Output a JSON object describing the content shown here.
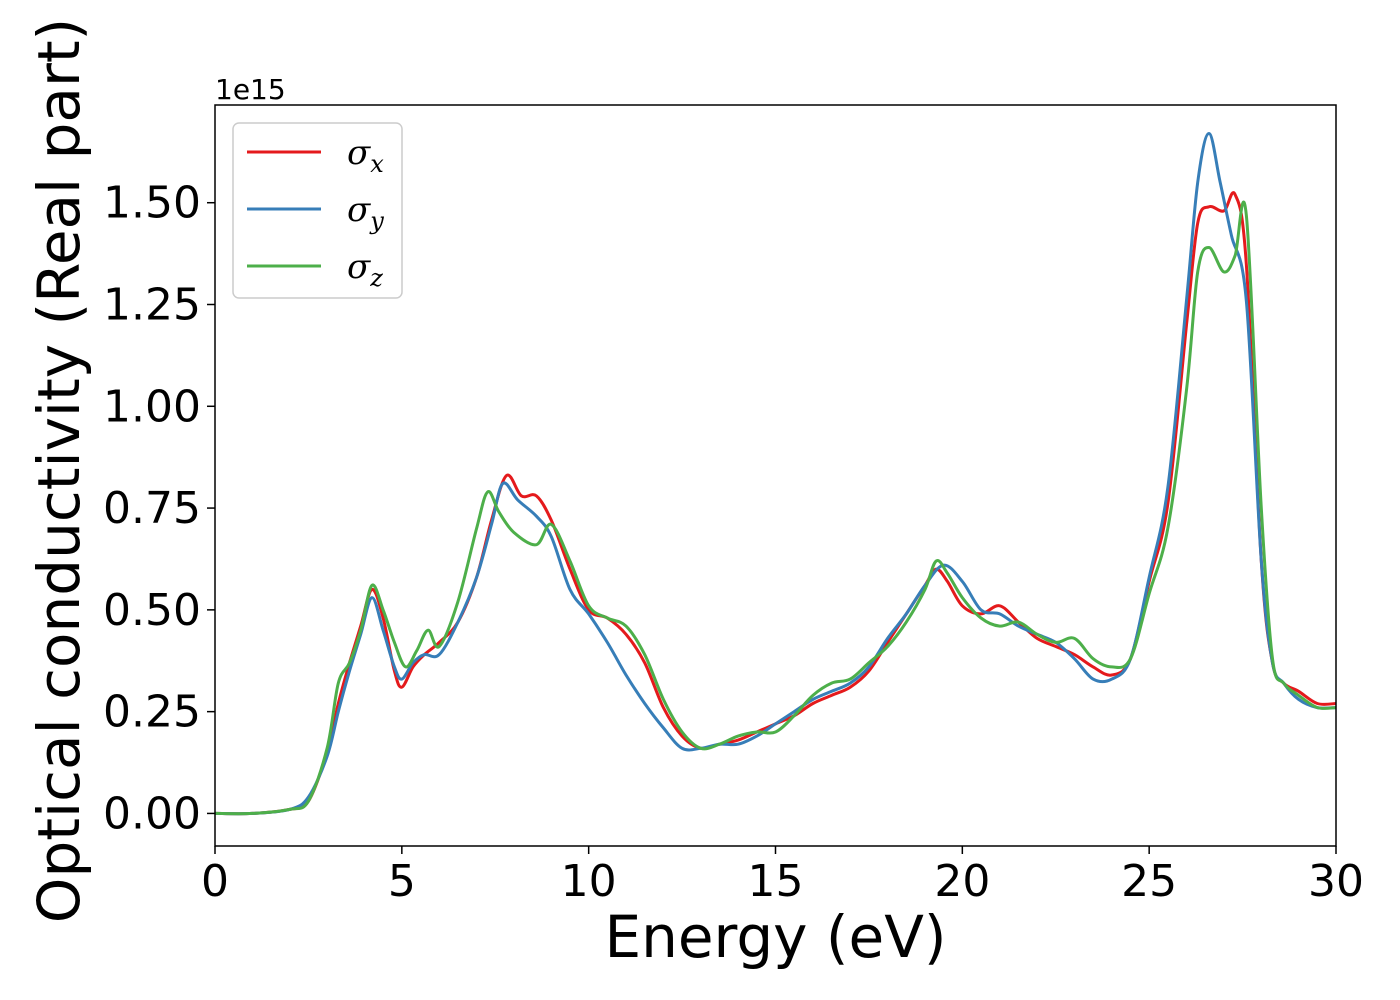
{
  "chart_data": {
    "type": "line",
    "title": "",
    "xlabel": "Energy (eV)",
    "ylabel": "Optical conductivity (Real part)",
    "y_offset_text": "1e15",
    "xlim": [
      0,
      30
    ],
    "ylim": [
      -0.08,
      1.74
    ],
    "xticks": [
      0,
      5,
      10,
      15,
      20,
      25,
      30
    ],
    "xtick_labels": [
      "0",
      "5",
      "10",
      "15",
      "20",
      "25",
      "30"
    ],
    "yticks": [
      0.0,
      0.25,
      0.5,
      0.75,
      1.0,
      1.25,
      1.5
    ],
    "ytick_labels": [
      "0.00",
      "0.25",
      "0.50",
      "0.75",
      "1.00",
      "1.25",
      "1.50"
    ],
    "grid": false,
    "legend_position": "top-left",
    "series": [
      {
        "name": "σ",
        "subscript": "x",
        "color": "#e41a1c",
        "x": [
          0,
          1,
          2,
          2.5,
          3,
          3.3,
          3.6,
          3.9,
          4.2,
          4.5,
          4.8,
          5.0,
          5.3,
          5.6,
          6.0,
          6.5,
          7.0,
          7.4,
          7.8,
          8.2,
          8.6,
          9.0,
          9.5,
          10.0,
          10.5,
          11.0,
          11.5,
          12.0,
          12.5,
          13.0,
          13.5,
          14.0,
          14.5,
          15.0,
          15.5,
          16.0,
          16.5,
          17.0,
          17.5,
          18.0,
          18.5,
          19.0,
          19.3,
          19.6,
          20.0,
          20.5,
          21.0,
          21.5,
          22.0,
          22.5,
          23.0,
          23.5,
          24.0,
          24.5,
          25.0,
          25.5,
          26.0,
          26.3,
          26.6,
          27.0,
          27.3,
          27.6,
          28.0,
          28.3,
          28.6,
          29.0,
          29.5,
          30.0
        ],
        "y": [
          0.0,
          0.0,
          0.01,
          0.03,
          0.15,
          0.27,
          0.37,
          0.46,
          0.55,
          0.48,
          0.35,
          0.31,
          0.36,
          0.39,
          0.42,
          0.47,
          0.58,
          0.72,
          0.83,
          0.78,
          0.78,
          0.72,
          0.6,
          0.5,
          0.48,
          0.44,
          0.37,
          0.26,
          0.19,
          0.16,
          0.17,
          0.18,
          0.2,
          0.22,
          0.24,
          0.27,
          0.29,
          0.31,
          0.35,
          0.42,
          0.49,
          0.56,
          0.6,
          0.57,
          0.51,
          0.49,
          0.51,
          0.47,
          0.43,
          0.41,
          0.39,
          0.36,
          0.34,
          0.38,
          0.57,
          0.76,
          1.2,
          1.45,
          1.49,
          1.48,
          1.52,
          1.35,
          0.62,
          0.37,
          0.32,
          0.3,
          0.27,
          0.27
        ]
      },
      {
        "name": "σ",
        "subscript": "y",
        "color": "#377eb8",
        "x": [
          0,
          1,
          2,
          2.5,
          3,
          3.3,
          3.6,
          3.9,
          4.2,
          4.5,
          4.8,
          5.0,
          5.3,
          5.6,
          6.0,
          6.5,
          7.0,
          7.4,
          7.7,
          8.1,
          8.6,
          9.0,
          9.5,
          10.0,
          10.5,
          11.0,
          11.5,
          12.0,
          12.5,
          13.0,
          13.5,
          14.0,
          14.5,
          15.0,
          15.5,
          16.0,
          16.5,
          17.0,
          17.5,
          18.0,
          18.5,
          19.0,
          19.5,
          20.0,
          20.5,
          21.0,
          21.5,
          22.0,
          22.5,
          23.0,
          23.5,
          24.0,
          24.5,
          25.0,
          25.5,
          26.0,
          26.3,
          26.6,
          26.9,
          27.2,
          27.6,
          28.0,
          28.3,
          28.6,
          29.0,
          29.5,
          30.0
        ],
        "y": [
          0.0,
          0.0,
          0.01,
          0.04,
          0.14,
          0.25,
          0.35,
          0.44,
          0.53,
          0.45,
          0.36,
          0.33,
          0.37,
          0.39,
          0.39,
          0.47,
          0.58,
          0.71,
          0.81,
          0.77,
          0.73,
          0.68,
          0.55,
          0.49,
          0.42,
          0.34,
          0.27,
          0.21,
          0.16,
          0.16,
          0.17,
          0.17,
          0.19,
          0.22,
          0.25,
          0.28,
          0.3,
          0.32,
          0.36,
          0.43,
          0.49,
          0.56,
          0.61,
          0.57,
          0.5,
          0.49,
          0.46,
          0.44,
          0.42,
          0.38,
          0.33,
          0.33,
          0.38,
          0.58,
          0.8,
          1.26,
          1.55,
          1.67,
          1.55,
          1.42,
          1.26,
          0.62,
          0.37,
          0.32,
          0.28,
          0.26,
          0.26
        ]
      },
      {
        "name": "σ",
        "subscript": "z",
        "color": "#4daf4a",
        "x": [
          0,
          1,
          2,
          2.5,
          3,
          3.3,
          3.6,
          3.9,
          4.2,
          4.5,
          4.8,
          5.1,
          5.4,
          5.7,
          6.0,
          6.5,
          7.0,
          7.3,
          7.6,
          8.0,
          8.6,
          9.0,
          9.5,
          10.0,
          10.5,
          11.0,
          11.5,
          12.0,
          12.5,
          13.0,
          13.5,
          14.0,
          14.5,
          15.0,
          15.5,
          16.0,
          16.5,
          17.0,
          17.5,
          18.0,
          18.5,
          19.0,
          19.3,
          19.6,
          20.0,
          20.5,
          21.0,
          21.5,
          22.0,
          22.5,
          23.0,
          23.5,
          24.0,
          24.5,
          25.0,
          25.5,
          26.0,
          26.3,
          26.6,
          27.0,
          27.3,
          27.6,
          28.0,
          28.3,
          28.6,
          29.0,
          29.5,
          30.0
        ],
        "y": [
          0.0,
          0.0,
          0.01,
          0.03,
          0.16,
          0.32,
          0.37,
          0.45,
          0.56,
          0.5,
          0.42,
          0.36,
          0.4,
          0.45,
          0.41,
          0.52,
          0.7,
          0.79,
          0.74,
          0.69,
          0.66,
          0.71,
          0.62,
          0.51,
          0.48,
          0.46,
          0.39,
          0.28,
          0.2,
          0.16,
          0.17,
          0.19,
          0.2,
          0.2,
          0.24,
          0.29,
          0.32,
          0.33,
          0.37,
          0.41,
          0.47,
          0.55,
          0.62,
          0.59,
          0.53,
          0.48,
          0.46,
          0.47,
          0.44,
          0.42,
          0.43,
          0.38,
          0.36,
          0.38,
          0.54,
          0.7,
          1.04,
          1.33,
          1.39,
          1.33,
          1.37,
          1.47,
          0.75,
          0.38,
          0.32,
          0.29,
          0.26,
          0.26
        ]
      }
    ]
  }
}
